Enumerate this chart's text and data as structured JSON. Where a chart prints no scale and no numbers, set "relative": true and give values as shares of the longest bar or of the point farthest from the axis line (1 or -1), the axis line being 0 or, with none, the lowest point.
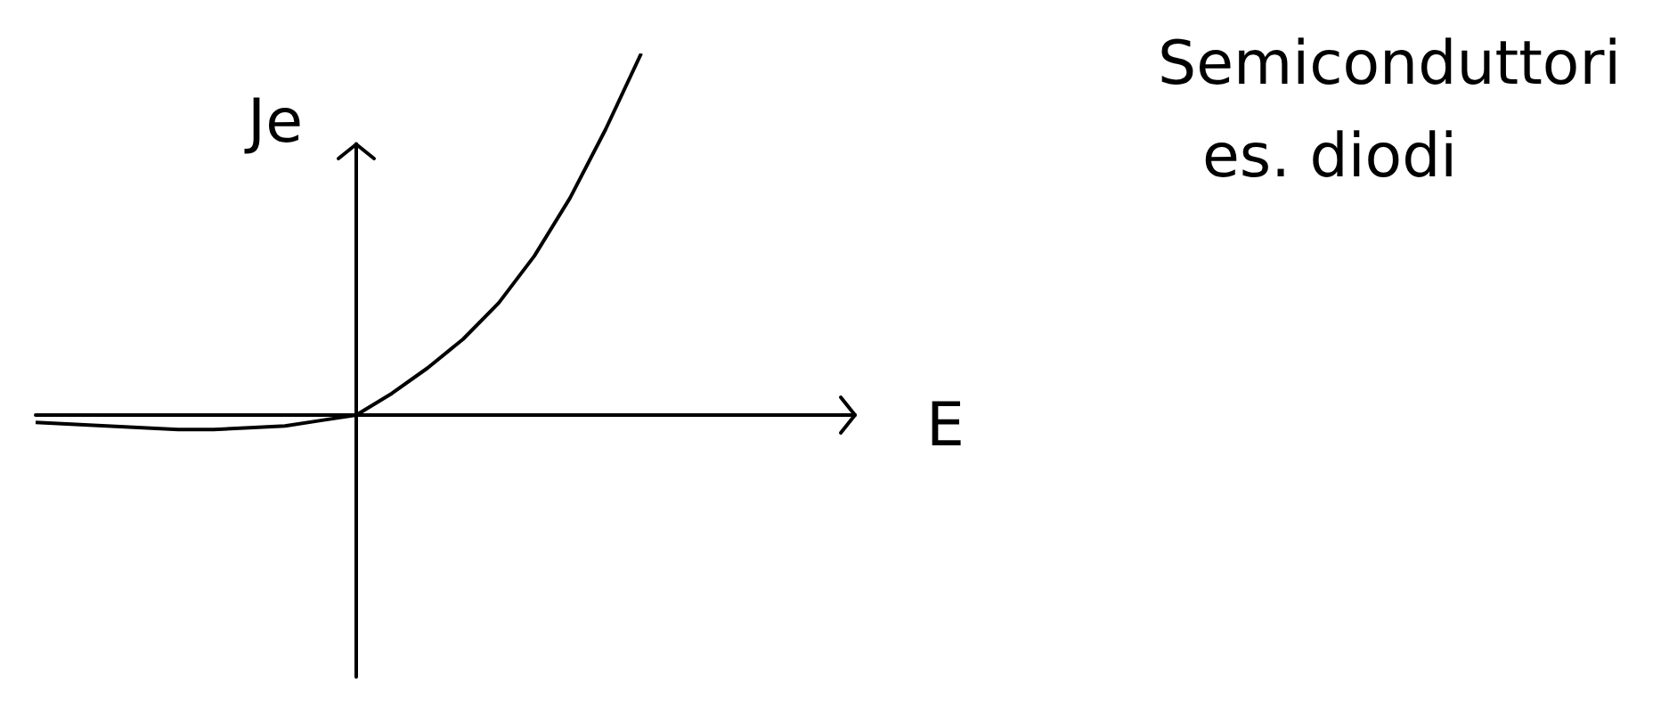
{
  "chart_data": {
    "type": "line",
    "title": "Semiconduttori",
    "subtitle": "es. diodi",
    "xlabel": "E",
    "ylabel": "Je",
    "relative": true,
    "categories": [
      null,
      null,
      null,
      null,
      null,
      null,
      null,
      null,
      null,
      null,
      null,
      null,
      null,
      null,
      null,
      null,
      null,
      null,
      null,
      null,
      null,
      null,
      null,
      null
    ],
    "series": [
      {
        "color": "#000000",
        "values": [
          -0.02,
          -0.025,
          -0.03,
          -0.035,
          -0.04,
          -0.04,
          -0.035,
          -0.03,
          -0.015,
          0,
          0.06,
          0.13,
          0.21,
          0.31,
          0.44,
          0.6,
          0.79,
          1,
          null,
          null,
          null,
          null,
          null,
          null
        ]
      }
    ],
    "marker": "none",
    "line_style": "solid"
  }
}
